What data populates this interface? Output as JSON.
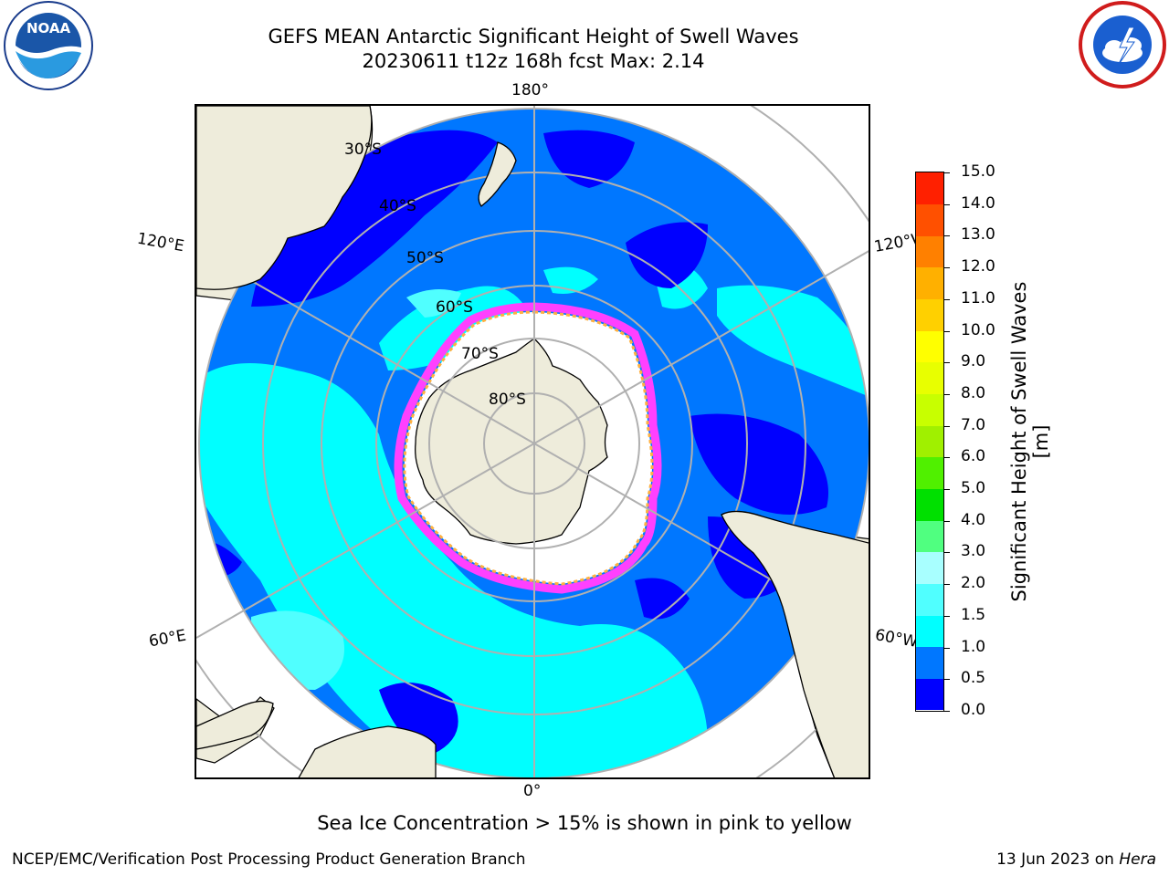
{
  "header": {
    "title_line1": "GEFS MEAN Antarctic Significant Height of Swell Waves",
    "title_line2": "20230611 t12z 168h fcst   Max: 2.14"
  },
  "logos": {
    "noaa": {
      "name": "noaa-logo",
      "text": "NOAA",
      "ring_text": "NATIONAL OCEANIC AND ATMOSPHERIC ADMINISTRATION · U.S. DEPARTMENT OF COMMERCE"
    },
    "nws": {
      "name": "nws-logo",
      "ring_text": "NATIONAL WEATHER SERVICE"
    }
  },
  "map": {
    "projection": "south polar stereographic",
    "longitude_labels": {
      "top": "180°",
      "bottom": "0°",
      "upper_left": "120°E",
      "lower_left": "60°E",
      "upper_right": "120°W",
      "lower_right": "60°W"
    },
    "latitude_labels": [
      "30°S",
      "40°S",
      "50°S",
      "60°S",
      "70°S",
      "80°S"
    ],
    "colors": {
      "land": "#eeecdb",
      "ocean_low": "#0000ff",
      "ocean_mid": "#0077ff",
      "ocean_high": "#00ffff",
      "ocean_higher": "#50ffff",
      "ice_edge_pink": "#ff40ff",
      "ice_edge_yellow": "#ffb040",
      "grid": "#b0b0b0"
    }
  },
  "colorbar": {
    "title": "Significant Height of Swell Waves [m]",
    "tick_labels": [
      "0.0",
      "0.5",
      "1.0",
      "1.5",
      "2.0",
      "3.0",
      "4.0",
      "5.0",
      "6.0",
      "7.0",
      "8.0",
      "9.0",
      "10.0",
      "11.0",
      "12.0",
      "13.0",
      "14.0",
      "15.0"
    ],
    "colors": [
      "#0000ff",
      "#0077ff",
      "#00ffff",
      "#50ffff",
      "#a8ffff",
      "#50ff80",
      "#00e000",
      "#50f000",
      "#a0f000",
      "#c8ff00",
      "#e8ff00",
      "#ffff00",
      "#ffd000",
      "#ffb000",
      "#ff8000",
      "#ff5000",
      "#ff2000"
    ]
  },
  "footer": {
    "note": "Sea Ice Concentration > 15% is shown in pink to yellow",
    "credit": "NCEP/EMC/Verification Post Processing Product Generation Branch",
    "date_prefix": "13 Jun 2023 on ",
    "machine": "Hera"
  }
}
